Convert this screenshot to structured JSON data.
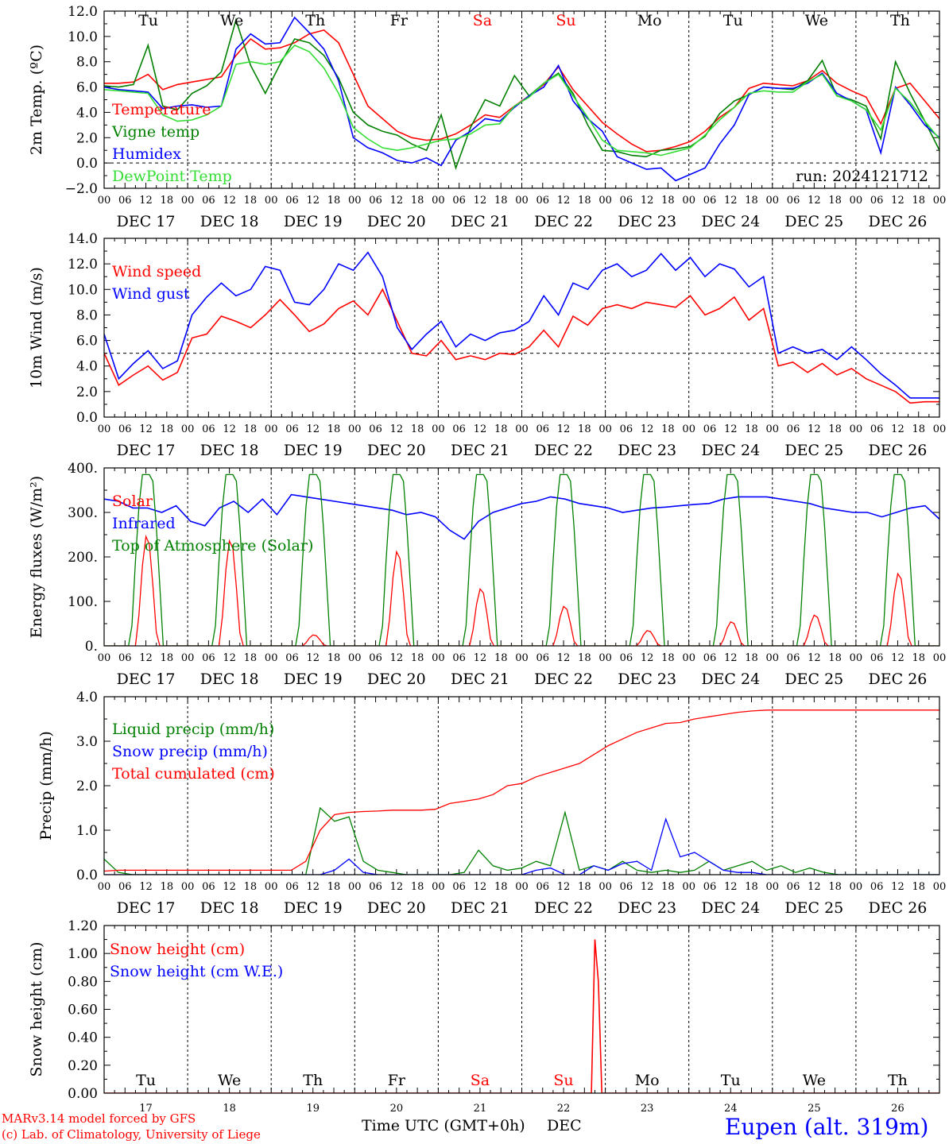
{
  "colors": {
    "red": "#ff0000",
    "green": "#008000",
    "blue": "#0000ff",
    "lightgreen": "#33dd33",
    "axis": "#000000"
  },
  "x_ticks": [
    "00",
    "06",
    "12",
    "18"
  ],
  "x_ticks_end": "00",
  "dates": [
    "DEC 17",
    "DEC 18",
    "DEC 19",
    "DEC 20",
    "DEC 21",
    "DEC 22",
    "DEC 23",
    "DEC 24",
    "DEC 25",
    "DEC 26"
  ],
  "weekdays": [
    {
      "label": "Tu",
      "weekend": false
    },
    {
      "label": "We",
      "weekend": false
    },
    {
      "label": "Th",
      "weekend": false
    },
    {
      "label": "Fr",
      "weekend": false
    },
    {
      "label": "Sa",
      "weekend": true
    },
    {
      "label": "Su",
      "weekend": true
    },
    {
      "label": "Mo",
      "weekend": false
    },
    {
      "label": "Tu",
      "weekend": false
    },
    {
      "label": "We",
      "weekend": false
    },
    {
      "label": "Th",
      "weekend": false
    }
  ],
  "day_numbers": [
    "17",
    "18",
    "19",
    "20",
    "21",
    "22",
    "23",
    "24",
    "25",
    "26"
  ],
  "footer": {
    "model": "MARv3.14 model forced by GFS",
    "copyright": "(c) Lab. of Climatology, University of Liege",
    "xlabel": "Time UTC (GMT+0h)",
    "month": "DEC",
    "station": "Eupen (alt. 319m)"
  },
  "chart_data": [
    {
      "id": "temp",
      "type": "line",
      "ylabel": "2m Temp. (ºC)",
      "ylim": [
        -2,
        12
      ],
      "yticks": [
        -2,
        0,
        2,
        4,
        6,
        8,
        10,
        12
      ],
      "tick_decimals": 1,
      "ref_line": 0,
      "run_label": "run: 2024121712",
      "x_unit": "hours since DEC 17 00 UTC (3-hourly)",
      "series": [
        {
          "name": "Temperature",
          "color": "red",
          "values": [
            6.3,
            6.3,
            6.4,
            7.0,
            5.8,
            6.2,
            6.4,
            6.6,
            6.8,
            8.5,
            9.8,
            9.0,
            9.1,
            9.5,
            10.2,
            10.5,
            9.5,
            7.0,
            4.5,
            3.5,
            2.5,
            2.0,
            1.8,
            1.9,
            2.3,
            3.0,
            3.8,
            3.6,
            4.5,
            5.3,
            6.2,
            7.6,
            5.8,
            4.5,
            3.2,
            2.3,
            1.5,
            0.9,
            1.0,
            1.3,
            1.7,
            2.5,
            3.6,
            4.4,
            5.9,
            6.3,
            6.2,
            6.1,
            6.5,
            7.3,
            6.3,
            5.7,
            5.2,
            3.1,
            5.9,
            6.3,
            4.9,
            3.5
          ]
        },
        {
          "name": "Vigne temp",
          "color": "green",
          "values": [
            6.1,
            6.0,
            6.2,
            9.3,
            4.5,
            4.2,
            5.5,
            6.1,
            7.2,
            11.3,
            7.7,
            5.5,
            7.8,
            9.8,
            9.5,
            8.5,
            6.7,
            4.0,
            3.0,
            2.5,
            2.2,
            1.5,
            1.0,
            3.8,
            -0.4,
            2.8,
            5.0,
            4.5,
            6.9,
            5.3,
            6.3,
            7.1,
            5.5,
            3.0,
            1.0,
            0.9,
            0.6,
            0.5,
            1.0,
            1.1,
            1.3,
            2.1,
            3.9,
            4.9,
            5.4,
            6.0,
            5.9,
            5.8,
            6.5,
            8.1,
            5.3,
            5.0,
            4.5,
            1.9,
            8.0,
            5.5,
            3.3,
            1.0
          ]
        },
        {
          "name": "Humidex",
          "color": "blue",
          "values": [
            6.0,
            5.8,
            5.7,
            5.6,
            4.3,
            4.5,
            4.6,
            4.4,
            4.5,
            9.0,
            10.2,
            9.4,
            9.5,
            11.5,
            10.3,
            9.0,
            6.5,
            2.0,
            1.2,
            0.8,
            0.2,
            0.0,
            0.4,
            -0.2,
            1.8,
            2.5,
            3.5,
            3.3,
            4.4,
            5.3,
            6.0,
            7.7,
            4.9,
            3.5,
            2.5,
            0.5,
            0.0,
            -0.5,
            -0.4,
            -1.4,
            -0.9,
            -0.4,
            1.5,
            3.0,
            5.4,
            6.0,
            5.9,
            5.9,
            6.3,
            7.1,
            5.5,
            4.9,
            4.2,
            0.8,
            6.0,
            4.6,
            3.0,
            2.0
          ]
        },
        {
          "name": "DewPoint Temp",
          "color": "lightgreen",
          "values": [
            5.8,
            5.7,
            5.6,
            5.5,
            3.8,
            3.3,
            3.4,
            3.8,
            4.5,
            7.8,
            8.0,
            7.8,
            8.0,
            9.3,
            8.8,
            7.5,
            5.5,
            2.8,
            1.9,
            1.2,
            1.0,
            1.2,
            1.5,
            1.8,
            1.9,
            2.3,
            3.0,
            3.1,
            4.5,
            5.2,
            6.3,
            7.0,
            5.3,
            3.6,
            1.8,
            1.0,
            0.9,
            0.8,
            0.6,
            0.9,
            1.2,
            2.2,
            3.4,
            4.4,
            5.5,
            5.7,
            5.6,
            5.6,
            6.4,
            7.0,
            5.3,
            4.9,
            4.2,
            2.6,
            5.9,
            4.8,
            3.3,
            1.9
          ]
        }
      ]
    },
    {
      "id": "wind",
      "type": "line",
      "ylabel": "10m Wind (m/s)",
      "ylim": [
        0,
        14
      ],
      "yticks": [
        0,
        2,
        4,
        6,
        8,
        10,
        12,
        14
      ],
      "tick_decimals": 1,
      "ref_line": 5,
      "series": [
        {
          "name": "Wind speed",
          "color": "red",
          "values": [
            5.0,
            2.5,
            3.3,
            4.0,
            2.9,
            3.5,
            6.2,
            6.5,
            7.9,
            7.5,
            7.0,
            8.0,
            9.2,
            8.0,
            6.7,
            7.3,
            8.5,
            9.1,
            8.0,
            10.0,
            7.5,
            5.0,
            4.8,
            6.0,
            4.5,
            4.8,
            4.5,
            5.0,
            4.9,
            5.5,
            6.8,
            5.5,
            7.9,
            7.2,
            8.5,
            8.8,
            8.5,
            9.0,
            8.8,
            8.6,
            9.5,
            8.0,
            8.5,
            9.4,
            7.6,
            8.5,
            4.0,
            4.3,
            3.5,
            4.2,
            3.3,
            3.8,
            3.0,
            2.5,
            2.0,
            1.1,
            1.2,
            1.2
          ]
        },
        {
          "name": "Wind gust",
          "color": "blue",
          "values": [
            6.5,
            3.0,
            4.2,
            5.2,
            3.8,
            4.4,
            8.0,
            9.4,
            10.5,
            9.5,
            10.0,
            11.8,
            11.5,
            9.0,
            8.8,
            10.0,
            12.0,
            11.5,
            12.9,
            11.0,
            7.0,
            5.3,
            6.5,
            7.5,
            5.5,
            6.5,
            6.0,
            6.6,
            6.8,
            7.5,
            9.5,
            8.0,
            10.5,
            10.0,
            11.5,
            12.0,
            11.0,
            11.5,
            12.8,
            11.5,
            12.5,
            11.0,
            12.0,
            11.6,
            10.2,
            11.0,
            5.0,
            5.5,
            5.0,
            5.3,
            4.5,
            5.5,
            4.5,
            3.4,
            2.5,
            1.5,
            1.5,
            1.5
          ]
        }
      ]
    },
    {
      "id": "energy",
      "type": "line",
      "ylabel": "Energy fluxes (W/m²)",
      "ylim": [
        0,
        400
      ],
      "yticks": [
        0,
        100,
        200,
        300,
        400
      ],
      "tick_decimals": 0,
      "series": [
        {
          "name": "Solar",
          "color": "red",
          "peaks": [
            250,
            240,
            25,
            215,
            130,
            90,
            35,
            55,
            70,
            165
          ]
        },
        {
          "name": "Infrared",
          "color": "blue",
          "values": [
            330,
            325,
            310,
            310,
            300,
            315,
            280,
            270,
            310,
            325,
            300,
            330,
            295,
            340,
            335,
            330,
            325,
            320,
            315,
            310,
            305,
            295,
            300,
            290,
            260,
            240,
            280,
            300,
            310,
            320,
            325,
            335,
            330,
            320,
            315,
            310,
            300,
            305,
            310,
            312,
            315,
            318,
            320,
            330,
            335,
            335,
            335,
            330,
            325,
            320,
            310,
            305,
            300,
            300,
            290,
            300,
            310,
            315,
            285
          ]
        },
        {
          "name": "Top of Atmosphere (Solar)",
          "color": "green",
          "peaks": [
            385,
            385,
            385,
            385,
            385,
            385,
            385,
            385,
            385,
            385
          ]
        }
      ]
    },
    {
      "id": "precip",
      "type": "line",
      "ylabel": "Precip (mm/h)",
      "ylim": [
        0,
        4
      ],
      "yticks": [
        0,
        1,
        2,
        3,
        4
      ],
      "tick_decimals": 1,
      "series": [
        {
          "name": "Liquid precip (mm/h)",
          "color": "green",
          "values": [
            0.35,
            0.05,
            0,
            0,
            0,
            0,
            0,
            0,
            0,
            0,
            0,
            0,
            0,
            0,
            0,
            1.5,
            1.2,
            1.3,
            0.3,
            0.1,
            0.05,
            0,
            0,
            0,
            0,
            0.05,
            0.55,
            0.2,
            0.1,
            0.15,
            0.3,
            0.2,
            1.4,
            0.1,
            0.2,
            0.1,
            0.3,
            0.1,
            0.05,
            0.1,
            0.05,
            0.1,
            0.3,
            0.1,
            0.2,
            0.3,
            0.1,
            0.2,
            0.05,
            0.15,
            0.05,
            0,
            0,
            0,
            0,
            0,
            0,
            0,
            0
          ]
        },
        {
          "name": "Snow precip (mm/h)",
          "color": "blue",
          "values": [
            0,
            0,
            0,
            0,
            0,
            0,
            0,
            0,
            0,
            0,
            0,
            0,
            0,
            0,
            0,
            0,
            0.1,
            0.35,
            0.05,
            0,
            0,
            0,
            0,
            0,
            0,
            0,
            0,
            0,
            0,
            0,
            0.1,
            0.15,
            0,
            0,
            0.2,
            0.1,
            0.25,
            0.3,
            0.1,
            1.25,
            0.4,
            0.5,
            0.3,
            0.1,
            0.05,
            0.05,
            0,
            0,
            0,
            0,
            0,
            0,
            0,
            0,
            0,
            0,
            0,
            0,
            0
          ]
        },
        {
          "name": "Total cumulated (cm)",
          "color": "red",
          "values": [
            0.08,
            0.1,
            0.1,
            0.1,
            0.1,
            0.1,
            0.1,
            0.1,
            0.1,
            0.1,
            0.1,
            0.1,
            0.1,
            0.1,
            0.3,
            1.0,
            1.35,
            1.4,
            1.42,
            1.43,
            1.45,
            1.45,
            1.45,
            1.47,
            1.6,
            1.65,
            1.7,
            1.8,
            2.0,
            2.05,
            2.2,
            2.3,
            2.4,
            2.5,
            2.7,
            2.9,
            3.05,
            3.2,
            3.3,
            3.4,
            3.42,
            3.5,
            3.55,
            3.6,
            3.65,
            3.68,
            3.7,
            3.7,
            3.7,
            3.7,
            3.7,
            3.7,
            3.7,
            3.7,
            3.7,
            3.7,
            3.7,
            3.7,
            3.7
          ]
        }
      ]
    },
    {
      "id": "snow",
      "type": "line",
      "ylabel": "Snow height (cm)",
      "ylim": [
        0,
        1.2
      ],
      "yticks": [
        0,
        0.2,
        0.4,
        0.6,
        0.8,
        1.0,
        1.2
      ],
      "tick_decimals": 2,
      "series": [
        {
          "name": "Snow height (cm)",
          "color": "red",
          "spike": {
            "hour": 141,
            "values": [
              0,
              1.1,
              0.8,
              0
            ]
          }
        },
        {
          "name": "Snow height (cm W.E.)",
          "color": "blue"
        }
      ]
    }
  ]
}
